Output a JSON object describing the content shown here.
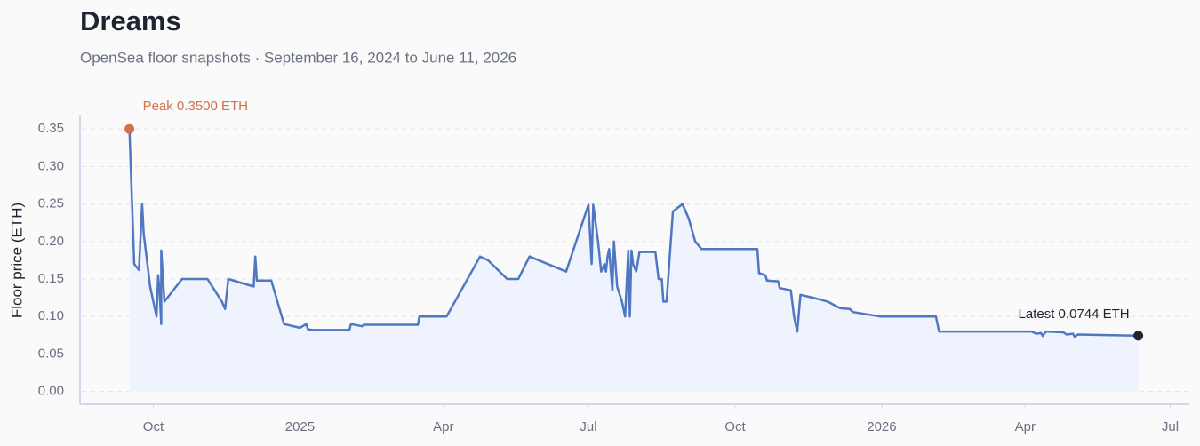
{
  "chart_data": {
    "type": "line",
    "title": "Dreams",
    "subtitle": "OpenSea floor snapshots · September 16, 2024 to June 11, 2026",
    "y_label": "Floor price (ETH)",
    "peak_annotation": "Peak 0.3500 ETH",
    "latest_annotation": "Latest 0.0744 ETH",
    "grid": true,
    "area_fill": "#eef3fd",
    "peak_color": "#d4704a",
    "latest_color": "#1f2430",
    "xlim": [
      "2024-08-16",
      "2026-07-13"
    ],
    "ylim": [
      -0.017,
      0.368
    ],
    "xticks": [
      {
        "value": "2024-10-01",
        "label": "Oct"
      },
      {
        "value": "2025-01-01",
        "label": "2025"
      },
      {
        "value": "2025-04-01",
        "label": "Apr"
      },
      {
        "value": "2025-07-01",
        "label": "Jul"
      },
      {
        "value": "2025-10-01",
        "label": "Oct"
      },
      {
        "value": "2026-01-01",
        "label": "2026"
      },
      {
        "value": "2026-04-01",
        "label": "Apr"
      },
      {
        "value": "2026-07-01",
        "label": "Jul"
      }
    ],
    "yticks": [
      {
        "value": 0,
        "label": "0.00"
      },
      {
        "value": 0.05,
        "label": "0.05"
      },
      {
        "value": 0.1,
        "label": "0.10"
      },
      {
        "value": 0.15,
        "label": "0.15"
      },
      {
        "value": 0.2,
        "label": "0.20"
      },
      {
        "value": 0.25,
        "label": "0.25"
      },
      {
        "value": 0.3,
        "label": "0.30"
      },
      {
        "value": 0.35,
        "label": "0.35"
      }
    ],
    "x": [
      "2024-09-16",
      "2024-09-19",
      "2024-09-22",
      "2024-09-24",
      "2024-09-25",
      "2024-09-29",
      "2024-10-03",
      "2024-10-04",
      "2024-10-05",
      "2024-10-06",
      "2024-10-06",
      "2024-10-08",
      "2024-10-19",
      "2024-11-04",
      "2024-11-13",
      "2024-11-15",
      "2024-11-17",
      "2024-12-03",
      "2024-12-04",
      "2024-12-05",
      "2024-12-14",
      "2024-12-22",
      "2025-01-01",
      "2025-01-05",
      "2025-01-06",
      "2025-01-09",
      "2025-02-01",
      "2025-02-02",
      "2025-02-09",
      "2025-02-10",
      "2025-03-16",
      "2025-03-17",
      "2025-04-03",
      "2025-04-24",
      "2025-04-29",
      "2025-05-11",
      "2025-05-18",
      "2025-05-25",
      "2025-06-17",
      "2025-07-01",
      "2025-07-03",
      "2025-07-04",
      "2025-07-07",
      "2025-07-09",
      "2025-07-11",
      "2025-07-12",
      "2025-07-13",
      "2025-07-14",
      "2025-07-16",
      "2025-07-17",
      "2025-07-19",
      "2025-07-22",
      "2025-07-24",
      "2025-07-26",
      "2025-07-27",
      "2025-07-28",
      "2025-07-29",
      "2025-07-31",
      "2025-08-02",
      "2025-08-12",
      "2025-08-14",
      "2025-08-16",
      "2025-08-17",
      "2025-08-19",
      "2025-08-23",
      "2025-08-29",
      "2025-09-02",
      "2025-09-06",
      "2025-09-10",
      "2025-10-15",
      "2025-10-16",
      "2025-10-20",
      "2025-10-21",
      "2025-10-28",
      "2025-10-29",
      "2025-11-05",
      "2025-11-07",
      "2025-11-09",
      "2025-11-11",
      "2025-11-19",
      "2025-11-28",
      "2025-12-06",
      "2025-12-12",
      "2025-12-14",
      "2025-12-31",
      "2026-02-04",
      "2026-02-06",
      "2026-04-05",
      "2026-04-08",
      "2026-04-11",
      "2026-04-12",
      "2026-04-14",
      "2026-04-25",
      "2026-04-27",
      "2026-05-01",
      "2026-05-02",
      "2026-05-04",
      "2026-06-11"
    ],
    "series": [
      {
        "name": "Floor price",
        "color": "#5077c2",
        "values": [
          0.35,
          0.17,
          0.162,
          0.25,
          0.21,
          0.14,
          0.1,
          0.155,
          0.13,
          0.09,
          0.188,
          0.12,
          0.15,
          0.15,
          0.12,
          0.11,
          0.15,
          0.14,
          0.18,
          0.148,
          0.148,
          0.09,
          0.085,
          0.09,
          0.083,
          0.082,
          0.082,
          0.09,
          0.087,
          0.089,
          0.089,
          0.1,
          0.1,
          0.18,
          0.175,
          0.15,
          0.15,
          0.18,
          0.16,
          0.249,
          0.17,
          0.249,
          0.2,
          0.16,
          0.17,
          0.16,
          0.18,
          0.19,
          0.135,
          0.2,
          0.14,
          0.12,
          0.1,
          0.188,
          0.1,
          0.188,
          0.17,
          0.16,
          0.186,
          0.186,
          0.15,
          0.15,
          0.12,
          0.12,
          0.24,
          0.25,
          0.23,
          0.2,
          0.19,
          0.19,
          0.158,
          0.155,
          0.148,
          0.147,
          0.138,
          0.135,
          0.1,
          0.08,
          0.129,
          0.125,
          0.12,
          0.111,
          0.11,
          0.106,
          0.1,
          0.1,
          0.08,
          0.08,
          0.077,
          0.078,
          0.074,
          0.08,
          0.079,
          0.076,
          0.077,
          0.073,
          0.076,
          0.0744
        ]
      }
    ]
  }
}
